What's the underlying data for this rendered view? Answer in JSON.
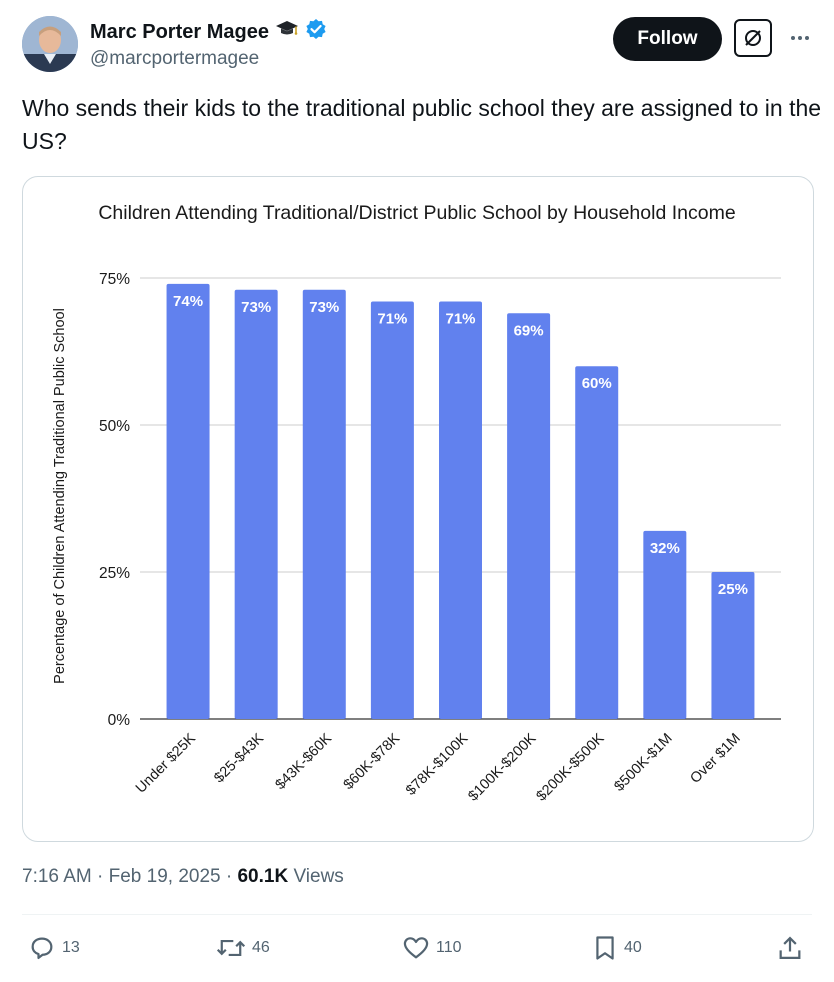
{
  "author": {
    "name": "Marc Porter Magee",
    "handle": "@marcportermagee",
    "verified_color": "#1d9bf0"
  },
  "header": {
    "follow_label": "Follow"
  },
  "tweet": {
    "text": "Who sends their kids to the traditional public school they are assigned to in the US?"
  },
  "meta": {
    "time": "7:16 AM",
    "sep1": "·",
    "date": "Feb 19, 2025",
    "sep2": "·",
    "views_count": "60.1K",
    "views_label": "Views"
  },
  "actions": {
    "replies": "13",
    "reposts": "46",
    "likes": "110",
    "bookmarks": "40"
  },
  "chart_data": {
    "type": "bar",
    "title": "Children Attending Traditional/District Public School by Household Income",
    "xlabel": "",
    "ylabel": "Percentage of Children Attending Traditional Public School",
    "categories": [
      "Under $25K",
      "$25-$43K",
      "$43K-$60K",
      "$60K-$78K",
      "$78K-$100K",
      "$100K-$200K",
      "$200K-$500K",
      "$500K-$1M",
      "Over $1M"
    ],
    "values": [
      74,
      73,
      73,
      71,
      71,
      69,
      60,
      32,
      25
    ],
    "value_labels": [
      "74%",
      "73%",
      "73%",
      "71%",
      "71%",
      "69%",
      "60%",
      "32%",
      "25%"
    ],
    "yticks": [
      0,
      25,
      50,
      75
    ],
    "ytick_labels": [
      "0%",
      "25%",
      "50%",
      "75%"
    ],
    "ylim": [
      0,
      75
    ],
    "grid": true,
    "bar_color": "#6181ee"
  }
}
